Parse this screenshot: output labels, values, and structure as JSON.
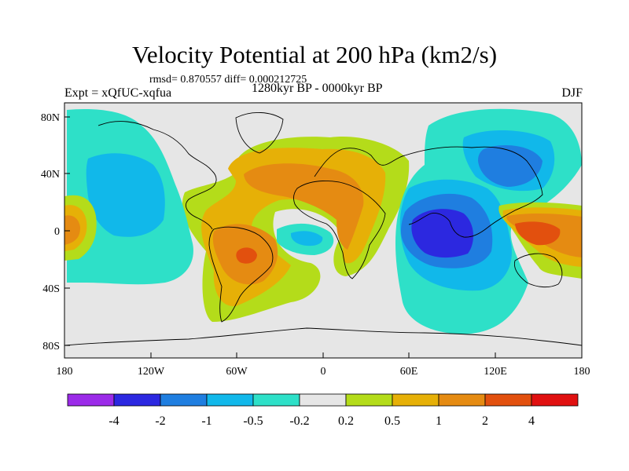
{
  "title": "Velocity Potential at 200 hPa (km2/s)",
  "stats": "rmsd= 0.870557 diff= 0.000212725",
  "experiment": "Expt = xQfUC-xqfua",
  "period": "1280kyr BP - 0000kyr BP",
  "season": "DJF",
  "colors": {
    "c_le_m4": "#9b2be8",
    "c_m4_m2": "#2c28e0",
    "c_m2_m1": "#1f7ee0",
    "c_m1_m05": "#11b8ea",
    "c_m05_m02": "#2ee0c8",
    "c_neutral": "#e6e6e6",
    "c_02_05": "#b4dc1a",
    "c_05_1": "#e6b007",
    "c_1_2": "#e58b12",
    "c_2_4": "#e2500e",
    "c_ge_4": "#e01010"
  },
  "map": {
    "projection": "cylindrical-equidistant",
    "lon_ticks": [
      "180",
      "120W",
      "60W",
      "0",
      "60E",
      "120E",
      "180"
    ],
    "lat_ticks": [
      "80N",
      "40N",
      "0",
      "40S",
      "80S"
    ]
  },
  "colorbar": {
    "labels": [
      "-4",
      "-2",
      "-1",
      "-0.5",
      "-0.2",
      "0.2",
      "0.5",
      "1",
      "2",
      "4"
    ]
  }
}
